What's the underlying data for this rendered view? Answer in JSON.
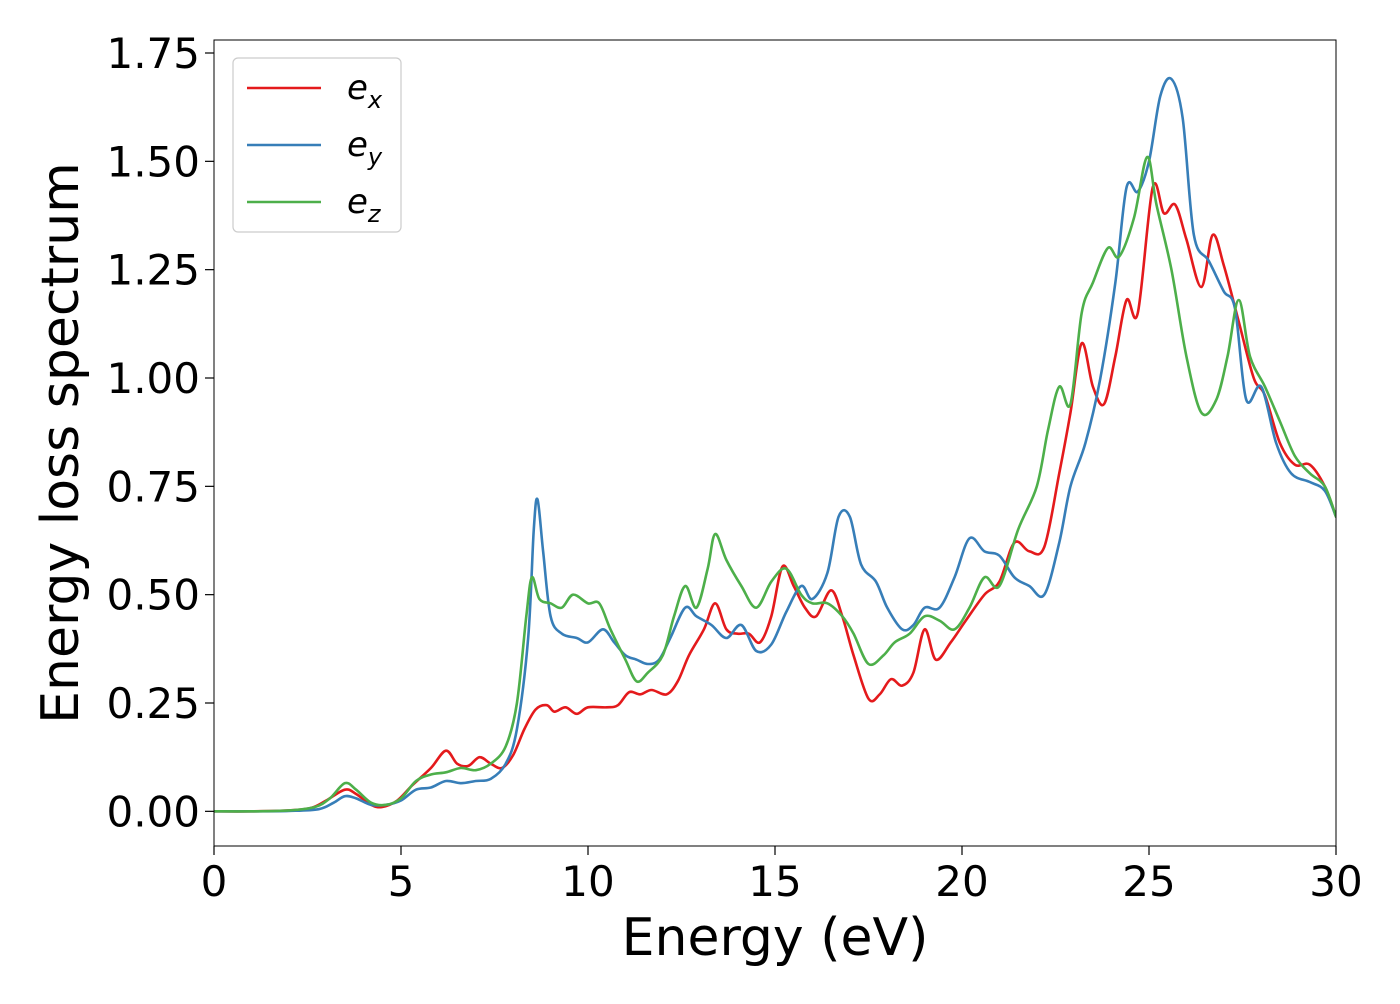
{
  "chart_data": {
    "type": "line",
    "title": "",
    "xlabel": "Energy (eV)",
    "ylabel": "Energy loss spectrum",
    "xlim": [
      0,
      30
    ],
    "ylim": [
      -0.08,
      1.78
    ],
    "xticks": [
      0,
      5,
      10,
      15,
      20,
      25,
      30
    ],
    "xtick_labels": [
      "0",
      "5",
      "10",
      "15",
      "20",
      "25",
      "30"
    ],
    "yticks": [
      0.0,
      0.25,
      0.5,
      0.75,
      1.0,
      1.25,
      1.5,
      1.75
    ],
    "ytick_labels": [
      "0.00",
      "0.25",
      "0.50",
      "0.75",
      "1.00",
      "1.25",
      "1.50",
      "1.75"
    ],
    "grid": false,
    "legend_position": "top-left",
    "series": [
      {
        "name": "e",
        "subscript": "x",
        "color": "#e41a1c",
        "points": [
          [
            0,
            0
          ],
          [
            1,
            0
          ],
          [
            2,
            0.002
          ],
          [
            2.6,
            0.008
          ],
          [
            3.0,
            0.025
          ],
          [
            3.5,
            0.05
          ],
          [
            3.8,
            0.04
          ],
          [
            4.2,
            0.015
          ],
          [
            4.5,
            0.01
          ],
          [
            4.9,
            0.025
          ],
          [
            5.3,
            0.06
          ],
          [
            5.8,
            0.1
          ],
          [
            6.2,
            0.14
          ],
          [
            6.5,
            0.11
          ],
          [
            6.8,
            0.105
          ],
          [
            7.1,
            0.125
          ],
          [
            7.4,
            0.11
          ],
          [
            7.7,
            0.1
          ],
          [
            8.0,
            0.13
          ],
          [
            8.3,
            0.19
          ],
          [
            8.6,
            0.235
          ],
          [
            8.9,
            0.245
          ],
          [
            9.1,
            0.23
          ],
          [
            9.4,
            0.24
          ],
          [
            9.7,
            0.225
          ],
          [
            10.0,
            0.24
          ],
          [
            10.5,
            0.24
          ],
          [
            10.8,
            0.245
          ],
          [
            11.1,
            0.275
          ],
          [
            11.4,
            0.27
          ],
          [
            11.7,
            0.28
          ],
          [
            12.1,
            0.27
          ],
          [
            12.4,
            0.3
          ],
          [
            12.7,
            0.36
          ],
          [
            13.1,
            0.42
          ],
          [
            13.4,
            0.48
          ],
          [
            13.7,
            0.42
          ],
          [
            14.0,
            0.41
          ],
          [
            14.3,
            0.41
          ],
          [
            14.6,
            0.39
          ],
          [
            14.9,
            0.45
          ],
          [
            15.2,
            0.565
          ],
          [
            15.5,
            0.52
          ],
          [
            15.8,
            0.47
          ],
          [
            16.1,
            0.45
          ],
          [
            16.5,
            0.51
          ],
          [
            16.8,
            0.45
          ],
          [
            17.1,
            0.36
          ],
          [
            17.5,
            0.26
          ],
          [
            17.8,
            0.27
          ],
          [
            18.1,
            0.305
          ],
          [
            18.4,
            0.29
          ],
          [
            18.7,
            0.32
          ],
          [
            19.0,
            0.42
          ],
          [
            19.3,
            0.35
          ],
          [
            19.7,
            0.39
          ],
          [
            20.1,
            0.44
          ],
          [
            20.6,
            0.5
          ],
          [
            21.0,
            0.53
          ],
          [
            21.4,
            0.62
          ],
          [
            21.8,
            0.6
          ],
          [
            22.2,
            0.61
          ],
          [
            22.6,
            0.78
          ],
          [
            22.9,
            0.92
          ],
          [
            23.2,
            1.08
          ],
          [
            23.5,
            0.98
          ],
          [
            23.8,
            0.94
          ],
          [
            24.1,
            1.05
          ],
          [
            24.4,
            1.18
          ],
          [
            24.7,
            1.15
          ],
          [
            25.1,
            1.44
          ],
          [
            25.4,
            1.38
          ],
          [
            25.7,
            1.4
          ],
          [
            26.0,
            1.32
          ],
          [
            26.4,
            1.21
          ],
          [
            26.7,
            1.33
          ],
          [
            27.0,
            1.26
          ],
          [
            27.4,
            1.13
          ],
          [
            27.8,
            1.0
          ],
          [
            28.1,
            0.96
          ],
          [
            28.5,
            0.85
          ],
          [
            28.9,
            0.8
          ],
          [
            29.3,
            0.8
          ],
          [
            29.7,
            0.75
          ],
          [
            30.0,
            0.68
          ]
        ]
      },
      {
        "name": "e",
        "subscript": "y",
        "color": "#377eb8",
        "points": [
          [
            0,
            0
          ],
          [
            1,
            0
          ],
          [
            2,
            0.001
          ],
          [
            2.8,
            0.005
          ],
          [
            3.2,
            0.02
          ],
          [
            3.5,
            0.035
          ],
          [
            3.8,
            0.03
          ],
          [
            4.2,
            0.015
          ],
          [
            4.6,
            0.015
          ],
          [
            5.0,
            0.025
          ],
          [
            5.4,
            0.05
          ],
          [
            5.8,
            0.055
          ],
          [
            6.2,
            0.07
          ],
          [
            6.6,
            0.065
          ],
          [
            7.0,
            0.07
          ],
          [
            7.4,
            0.075
          ],
          [
            7.8,
            0.11
          ],
          [
            8.1,
            0.19
          ],
          [
            8.4,
            0.4
          ],
          [
            8.55,
            0.65
          ],
          [
            8.65,
            0.72
          ],
          [
            8.8,
            0.6
          ],
          [
            9.0,
            0.45
          ],
          [
            9.3,
            0.41
          ],
          [
            9.7,
            0.4
          ],
          [
            10.0,
            0.39
          ],
          [
            10.4,
            0.42
          ],
          [
            10.7,
            0.39
          ],
          [
            11.0,
            0.36
          ],
          [
            11.3,
            0.35
          ],
          [
            11.6,
            0.34
          ],
          [
            11.9,
            0.35
          ],
          [
            12.2,
            0.4
          ],
          [
            12.6,
            0.47
          ],
          [
            12.9,
            0.45
          ],
          [
            13.3,
            0.43
          ],
          [
            13.7,
            0.4
          ],
          [
            14.1,
            0.43
          ],
          [
            14.5,
            0.37
          ],
          [
            14.9,
            0.385
          ],
          [
            15.3,
            0.46
          ],
          [
            15.7,
            0.52
          ],
          [
            16.0,
            0.49
          ],
          [
            16.4,
            0.55
          ],
          [
            16.7,
            0.68
          ],
          [
            17.0,
            0.68
          ],
          [
            17.3,
            0.57
          ],
          [
            17.7,
            0.53
          ],
          [
            18.0,
            0.47
          ],
          [
            18.4,
            0.42
          ],
          [
            18.7,
            0.43
          ],
          [
            19.0,
            0.47
          ],
          [
            19.4,
            0.47
          ],
          [
            19.8,
            0.54
          ],
          [
            20.2,
            0.63
          ],
          [
            20.6,
            0.6
          ],
          [
            21.0,
            0.59
          ],
          [
            21.4,
            0.54
          ],
          [
            21.8,
            0.52
          ],
          [
            22.2,
            0.5
          ],
          [
            22.6,
            0.62
          ],
          [
            22.9,
            0.75
          ],
          [
            23.3,
            0.85
          ],
          [
            23.7,
            1.0
          ],
          [
            24.1,
            1.22
          ],
          [
            24.4,
            1.44
          ],
          [
            24.7,
            1.43
          ],
          [
            25.0,
            1.5
          ],
          [
            25.3,
            1.65
          ],
          [
            25.6,
            1.69
          ],
          [
            25.9,
            1.6
          ],
          [
            26.2,
            1.33
          ],
          [
            26.6,
            1.27
          ],
          [
            27.0,
            1.2
          ],
          [
            27.3,
            1.16
          ],
          [
            27.6,
            0.95
          ],
          [
            28.0,
            0.98
          ],
          [
            28.4,
            0.85
          ],
          [
            28.8,
            0.78
          ],
          [
            29.3,
            0.76
          ],
          [
            29.7,
            0.74
          ],
          [
            30.0,
            0.68
          ]
        ]
      },
      {
        "name": "e",
        "subscript": "z",
        "color": "#4daf4a",
        "points": [
          [
            0,
            0
          ],
          [
            1,
            0
          ],
          [
            2,
            0.002
          ],
          [
            2.7,
            0.01
          ],
          [
            3.1,
            0.03
          ],
          [
            3.5,
            0.065
          ],
          [
            3.8,
            0.05
          ],
          [
            4.2,
            0.02
          ],
          [
            4.6,
            0.015
          ],
          [
            5.0,
            0.03
          ],
          [
            5.4,
            0.07
          ],
          [
            5.8,
            0.085
          ],
          [
            6.2,
            0.09
          ],
          [
            6.6,
            0.1
          ],
          [
            7.0,
            0.095
          ],
          [
            7.4,
            0.11
          ],
          [
            7.8,
            0.15
          ],
          [
            8.1,
            0.25
          ],
          [
            8.35,
            0.45
          ],
          [
            8.5,
            0.54
          ],
          [
            8.7,
            0.49
          ],
          [
            9.0,
            0.48
          ],
          [
            9.3,
            0.47
          ],
          [
            9.6,
            0.5
          ],
          [
            10.0,
            0.48
          ],
          [
            10.3,
            0.48
          ],
          [
            10.6,
            0.42
          ],
          [
            11.0,
            0.35
          ],
          [
            11.3,
            0.3
          ],
          [
            11.6,
            0.32
          ],
          [
            12.0,
            0.36
          ],
          [
            12.3,
            0.45
          ],
          [
            12.6,
            0.52
          ],
          [
            12.9,
            0.47
          ],
          [
            13.2,
            0.56
          ],
          [
            13.4,
            0.64
          ],
          [
            13.7,
            0.58
          ],
          [
            14.1,
            0.52
          ],
          [
            14.5,
            0.47
          ],
          [
            14.9,
            0.53
          ],
          [
            15.3,
            0.56
          ],
          [
            15.7,
            0.5
          ],
          [
            16.0,
            0.48
          ],
          [
            16.4,
            0.48
          ],
          [
            16.8,
            0.45
          ],
          [
            17.1,
            0.41
          ],
          [
            17.5,
            0.34
          ],
          [
            17.9,
            0.36
          ],
          [
            18.2,
            0.39
          ],
          [
            18.6,
            0.41
          ],
          [
            19.0,
            0.45
          ],
          [
            19.4,
            0.44
          ],
          [
            19.8,
            0.42
          ],
          [
            20.2,
            0.47
          ],
          [
            20.6,
            0.54
          ],
          [
            21.0,
            0.52
          ],
          [
            21.5,
            0.65
          ],
          [
            22.0,
            0.75
          ],
          [
            22.3,
            0.88
          ],
          [
            22.6,
            0.98
          ],
          [
            22.9,
            0.94
          ],
          [
            23.2,
            1.15
          ],
          [
            23.5,
            1.22
          ],
          [
            23.9,
            1.3
          ],
          [
            24.2,
            1.28
          ],
          [
            24.6,
            1.37
          ],
          [
            24.95,
            1.51
          ],
          [
            25.2,
            1.4
          ],
          [
            25.6,
            1.25
          ],
          [
            26.0,
            1.05
          ],
          [
            26.4,
            0.92
          ],
          [
            26.8,
            0.95
          ],
          [
            27.1,
            1.05
          ],
          [
            27.4,
            1.18
          ],
          [
            27.7,
            1.05
          ],
          [
            28.1,
            0.98
          ],
          [
            28.5,
            0.9
          ],
          [
            28.9,
            0.82
          ],
          [
            29.3,
            0.78
          ],
          [
            29.7,
            0.75
          ],
          [
            30.0,
            0.68
          ]
        ]
      }
    ]
  }
}
